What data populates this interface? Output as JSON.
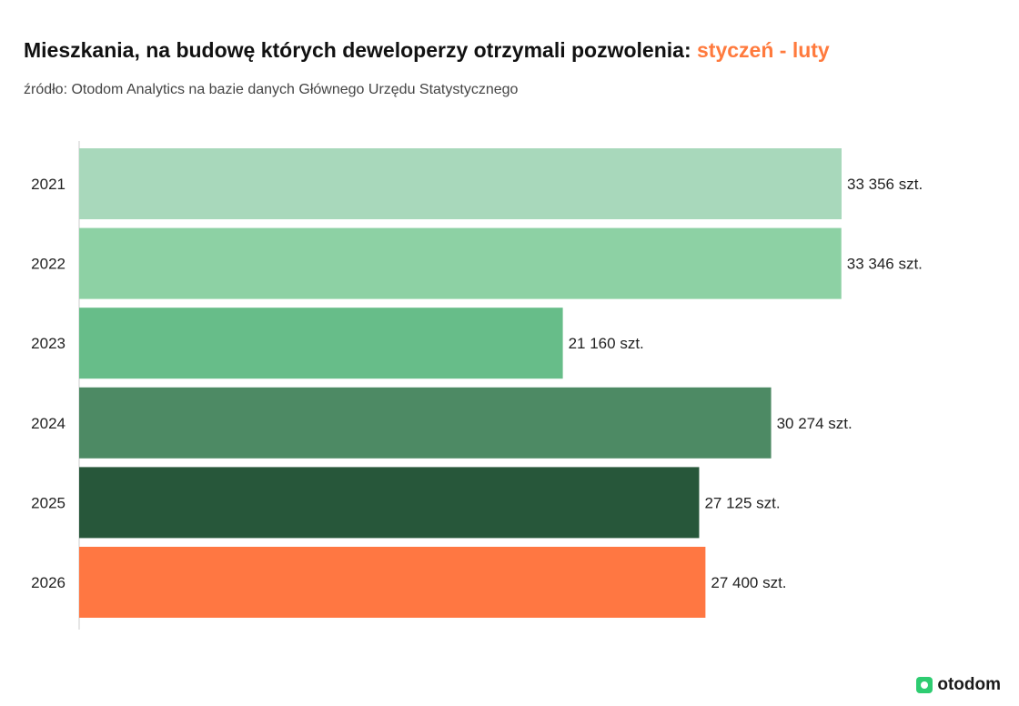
{
  "title": {
    "main": "Mieszkania, na budowę których deweloperzy otrzymali pozwolenia: ",
    "accent": "styczeń - luty"
  },
  "subtitle": "źródło: Otodom Analytics na bazie danych Głównego Urzędu Statystycznego",
  "logo": {
    "text": "otodom",
    "icon": "otodom-logo-icon"
  },
  "chart_data": {
    "type": "bar",
    "orientation": "horizontal",
    "categories": [
      "2021",
      "2022",
      "2023",
      "2024",
      "2025",
      "2026"
    ],
    "values": [
      33356,
      33346,
      21160,
      30274,
      27125,
      27400
    ],
    "data_labels": [
      "33 356 szt.",
      "33 346 szt.",
      "21 160 szt.",
      "30 274 szt.",
      "27 125 szt.",
      "27 400 szt."
    ],
    "colors": [
      "#a8d8bb",
      "#8dd1a4",
      "#67bd89",
      "#4d8a64",
      "#27573a",
      "#ff7742"
    ],
    "xlim": [
      0,
      33356
    ],
    "grid": false,
    "legend": "none"
  }
}
